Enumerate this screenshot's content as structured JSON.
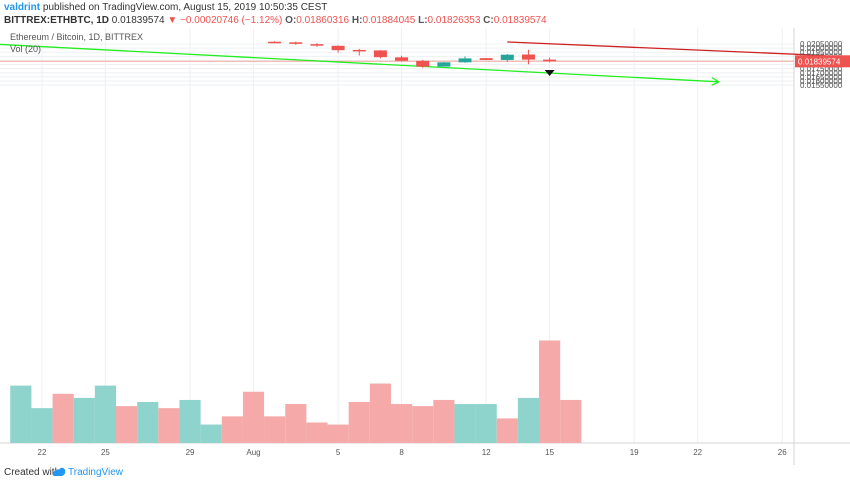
{
  "header": {
    "user": "valdrint",
    "published": "published on TradingView.com, August 15, 2019 10:50:35 CEST",
    "symbol": "BITTREX:ETHBTC, 1D",
    "last": "0.01839574",
    "change": "▼ −0.00020746 (−1.12%)",
    "o_label": "O:",
    "o_value": "0.01860316",
    "h_label": "H:",
    "h_value": "0.01884045",
    "l_label": "L:",
    "l_value": "0.01826353",
    "c_label": "C:",
    "c_value": "0.01839574"
  },
  "legend": {
    "title": "Ethereum / Bitcoin, 1D, BITTREX",
    "volume": "Vol (20)"
  },
  "footer": {
    "created": "Created with",
    "brand": "TradingView"
  },
  "colors": {
    "up": "#26a69a",
    "down": "#ef5350",
    "vol_up": "#8ed3cc",
    "vol_down": "#f5a9a8",
    "green_line": "#22ee22",
    "red_line": "#cc2222",
    "price_line": "#f0a99f",
    "badge": "#ef5350"
  },
  "chart_data": {
    "type": "candlestick",
    "title": "Ethereum / Bitcoin, 1D, BITTREX",
    "y_axis": {
      "range": [
        0.01525,
        0.02075
      ],
      "ticks": [
        "0.02050000",
        "0.02000000",
        "0.01950000",
        "0.01900000",
        "0.01850000",
        "0.01800000",
        "0.01750000",
        "0.01700000",
        "0.01650000",
        "0.01600000",
        "0.01550000"
      ]
    },
    "x_axis": {
      "ticks": [
        {
          "label": "22",
          "day": 0
        },
        {
          "label": "25",
          "day": 3
        },
        {
          "label": "29",
          "day": 7
        },
        {
          "label": "Aug",
          "day": 10
        },
        {
          "label": "5",
          "day": 14
        },
        {
          "label": "8",
          "day": 17
        },
        {
          "label": "12",
          "day": 21
        },
        {
          "label": "15",
          "day": 24
        },
        {
          "label": "19",
          "day": 28
        },
        {
          "label": "22",
          "day": 31
        },
        {
          "label": "26",
          "day": 35
        }
      ]
    },
    "candles": [
      {
        "day": 11,
        "open": 0.02077,
        "high": 0.02085,
        "low": 0.0206,
        "close": 0.02067
      },
      {
        "day": 12,
        "open": 0.0207,
        "high": 0.0208,
        "low": 0.0204,
        "close": 0.02052
      },
      {
        "day": 13,
        "open": 0.02048,
        "high": 0.0206,
        "low": 0.02015,
        "close": 0.0203
      },
      {
        "day": 14,
        "open": 0.02028,
        "high": 0.02035,
        "low": 0.01945,
        "close": 0.01975
      },
      {
        "day": 15,
        "open": 0.01978,
        "high": 0.0199,
        "low": 0.0191,
        "close": 0.01972
      },
      {
        "day": 16,
        "open": 0.01972,
        "high": 0.01975,
        "low": 0.01875,
        "close": 0.0189
      },
      {
        "day": 17,
        "open": 0.01888,
        "high": 0.01908,
        "low": 0.01838,
        "close": 0.01845
      },
      {
        "day": 18,
        "open": 0.01845,
        "high": 0.01855,
        "low": 0.0176,
        "close": 0.01774
      },
      {
        "day": 19,
        "open": 0.01775,
        "high": 0.0183,
        "low": 0.01775,
        "close": 0.01827
      },
      {
        "day": 20,
        "open": 0.01827,
        "high": 0.019,
        "low": 0.01822,
        "close": 0.01875
      },
      {
        "day": 21,
        "open": 0.01878,
        "high": 0.0188,
        "low": 0.01855,
        "close": 0.01856
      },
      {
        "day": 22,
        "open": 0.01856,
        "high": 0.01927,
        "low": 0.01835,
        "close": 0.0192
      },
      {
        "day": 23,
        "open": 0.01922,
        "high": 0.0198,
        "low": 0.01803,
        "close": 0.0186
      },
      {
        "day": 24,
        "open": 0.0186,
        "high": 0.01884,
        "low": 0.01826,
        "close": 0.0184
      }
    ],
    "volume": [
      {
        "day": -1,
        "value": 28,
        "dir": "up"
      },
      {
        "day": 0,
        "value": 17,
        "dir": "up"
      },
      {
        "day": 1,
        "value": 24,
        "dir": "down"
      },
      {
        "day": 2,
        "value": 22,
        "dir": "up"
      },
      {
        "day": 3,
        "value": 28,
        "dir": "up"
      },
      {
        "day": 4,
        "value": 18,
        "dir": "down"
      },
      {
        "day": 5,
        "value": 20,
        "dir": "up"
      },
      {
        "day": 6,
        "value": 17,
        "dir": "down"
      },
      {
        "day": 7,
        "value": 21,
        "dir": "up"
      },
      {
        "day": 8,
        "value": 9,
        "dir": "up"
      },
      {
        "day": 9,
        "value": 13,
        "dir": "down"
      },
      {
        "day": 10,
        "value": 25,
        "dir": "down"
      },
      {
        "day": 11,
        "value": 13,
        "dir": "down"
      },
      {
        "day": 12,
        "value": 19,
        "dir": "down"
      },
      {
        "day": 13,
        "value": 10,
        "dir": "down"
      },
      {
        "day": 14,
        "value": 9,
        "dir": "down"
      },
      {
        "day": 15,
        "value": 20,
        "dir": "down"
      },
      {
        "day": 16,
        "value": 29,
        "dir": "down"
      },
      {
        "day": 17,
        "value": 19,
        "dir": "down"
      },
      {
        "day": 18,
        "value": 18,
        "dir": "down"
      },
      {
        "day": 19,
        "value": 21,
        "dir": "down"
      },
      {
        "day": 20,
        "value": 19,
        "dir": "up"
      },
      {
        "day": 21,
        "value": 19,
        "dir": "up"
      },
      {
        "day": 22,
        "value": 12,
        "dir": "down"
      },
      {
        "day": 23,
        "value": 22,
        "dir": "up"
      },
      {
        "day": 24,
        "value": 50,
        "dir": "down"
      },
      {
        "day": 25,
        "value": 21,
        "dir": "down"
      }
    ],
    "trendlines": [
      {
        "name": "support",
        "color": "green",
        "from": {
          "day": -2,
          "price": 0.02045
        },
        "to": {
          "day": 32,
          "price": 0.0159
        },
        "arrow": true
      },
      {
        "name": "resistance",
        "color": "red",
        "from": {
          "day": 22,
          "price": 0.02075
        },
        "to": {
          "day": 37,
          "price": 0.0191
        }
      }
    ],
    "last_price": {
      "value": 0.01839574,
      "label": "0.01839574"
    },
    "marker": {
      "day": 24,
      "price": 0.01697
    }
  }
}
